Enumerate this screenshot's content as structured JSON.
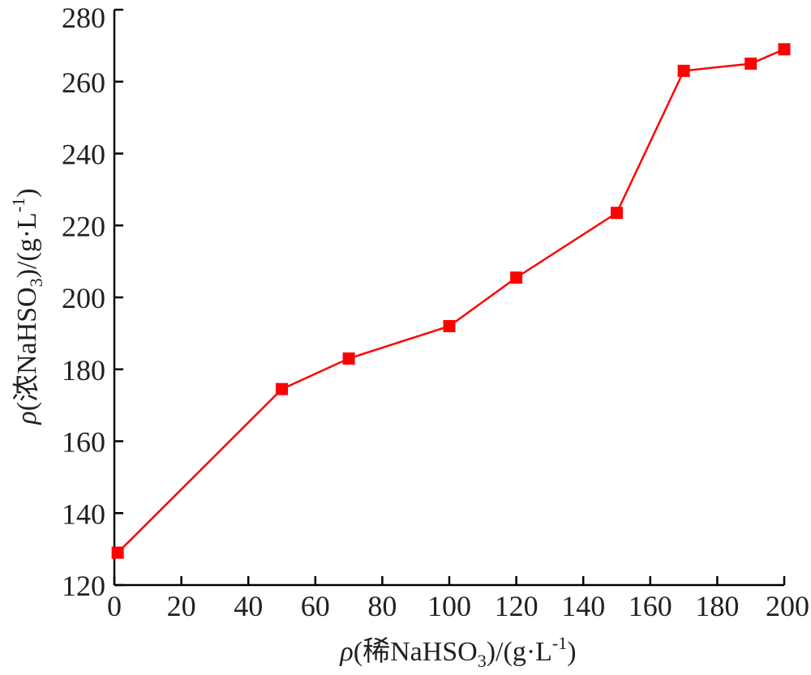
{
  "chart_data": {
    "type": "line",
    "title": "",
    "xlabel": {
      "symbol": "ρ",
      "open": "(",
      "qualifier": "稀",
      "compound": "NaHSO",
      "subscript": "3",
      "unit_prefix": ")/(g·L",
      "superscript": "-1",
      "close": ")"
    },
    "ylabel": {
      "symbol": "ρ",
      "open": "(",
      "qualifier": "浓",
      "compound": "NaHSO",
      "subscript": "3",
      "unit_prefix": ")/(g·L",
      "superscript": "-1",
      "close": ")"
    },
    "xlim": [
      0,
      200
    ],
    "ylim": [
      120,
      280
    ],
    "xticks": [
      0,
      20,
      40,
      60,
      80,
      100,
      120,
      140,
      160,
      180,
      200
    ],
    "yticks": [
      120,
      140,
      160,
      180,
      200,
      220,
      240,
      260,
      280
    ],
    "grid": false,
    "series": [
      {
        "color": "#ff0000",
        "marker": "square",
        "x": [
          1,
          50,
          70,
          100,
          120,
          150,
          170,
          190,
          200
        ],
        "y": [
          129,
          174.5,
          183,
          192,
          205.5,
          223.5,
          263,
          265,
          269
        ]
      }
    ]
  }
}
